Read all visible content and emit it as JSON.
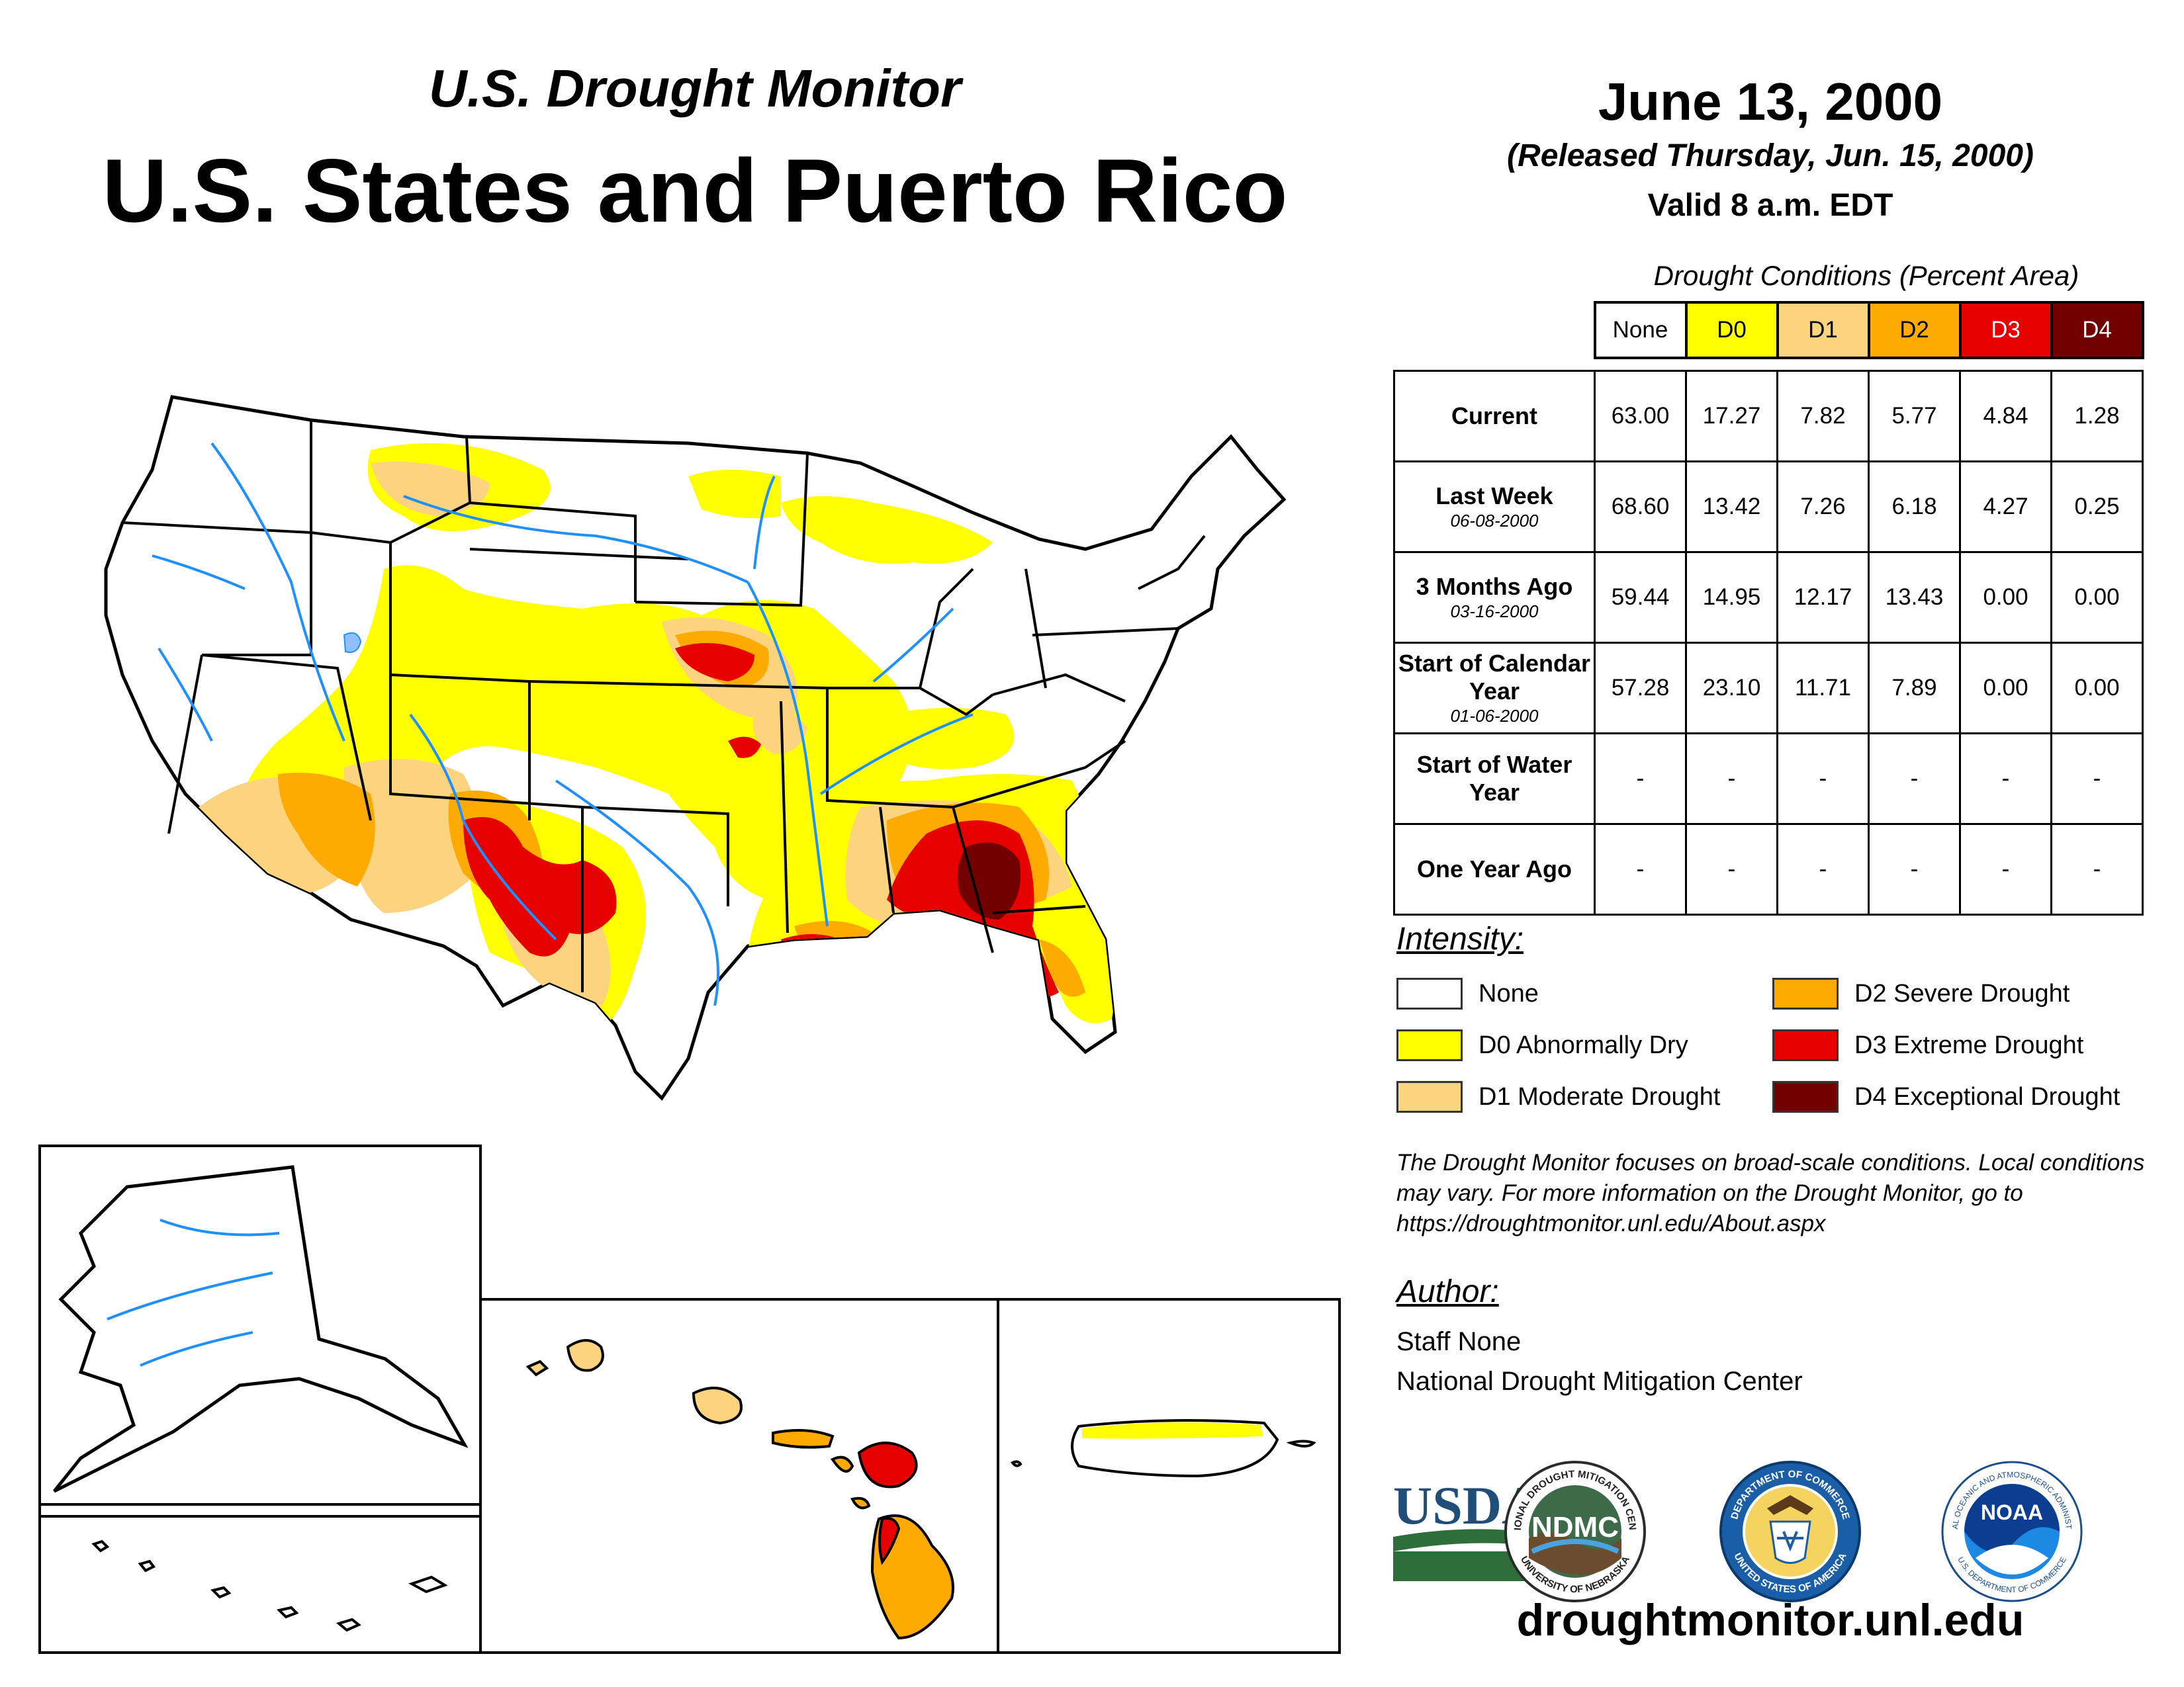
{
  "header": {
    "subtitle": "U.S. Drought Monitor",
    "title": "U.S. States and Puerto Rico",
    "date": "June 13, 2000",
    "released": "(Released Thursday, Jun. 15, 2000)",
    "valid": "Valid 8 a.m. EDT"
  },
  "conditions": {
    "title": "Drought Conditions (Percent Area)",
    "columns": [
      "None",
      "D0",
      "D1",
      "D2",
      "D3",
      "D4"
    ],
    "column_colors": [
      "#ffffff",
      "#ffff00",
      "#fcd37f",
      "#ffaa00",
      "#e60000",
      "#730000"
    ],
    "rows": [
      {
        "label": "Current",
        "date": "",
        "values": [
          "63.00",
          "17.27",
          "7.82",
          "5.77",
          "4.84",
          "1.28"
        ]
      },
      {
        "label": "Last Week",
        "date": "06-08-2000",
        "values": [
          "68.60",
          "13.42",
          "7.26",
          "6.18",
          "4.27",
          "0.25"
        ]
      },
      {
        "label": "3 Months Ago",
        "date": "03-16-2000",
        "values": [
          "59.44",
          "14.95",
          "12.17",
          "13.43",
          "0.00",
          "0.00"
        ]
      },
      {
        "label": "Start of Calendar Year",
        "date": "01-06-2000",
        "values": [
          "57.28",
          "23.10",
          "11.71",
          "7.89",
          "0.00",
          "0.00"
        ]
      },
      {
        "label": "Start of Water Year",
        "date": "",
        "values": [
          "-",
          "-",
          "-",
          "-",
          "-",
          "-"
        ]
      },
      {
        "label": "One Year Ago",
        "date": "",
        "values": [
          "-",
          "-",
          "-",
          "-",
          "-",
          "-"
        ]
      }
    ]
  },
  "intensity": {
    "heading": "Intensity:",
    "items": [
      {
        "label": "None",
        "color": "#ffffff"
      },
      {
        "label": "D0 Abnormally Dry",
        "color": "#ffff00"
      },
      {
        "label": "D1 Moderate Drought",
        "color": "#fcd37f"
      },
      {
        "label": "D2 Severe Drought",
        "color": "#ffaa00"
      },
      {
        "label": "D3 Extreme Drought",
        "color": "#e60000"
      },
      {
        "label": "D4 Exceptional Drought",
        "color": "#730000"
      }
    ]
  },
  "disclaimer": "The Drought Monitor focuses on broad-scale conditions. Local conditions may vary. For more information on the Drought Monitor, go to https://droughtmonitor.unl.edu/About.aspx",
  "author": {
    "heading": "Author:",
    "name": "Staff None",
    "org": "National Drought Mitigation Center"
  },
  "logos": {
    "usda": "USDA",
    "ndmc": "NDMC",
    "ndmc_ring": "NATIONAL DROUGHT MITIGATION CENTER",
    "ndmc_ring_bottom": "UNIVERSITY OF NEBRASKA",
    "doc_ring": "DEPARTMENT OF COMMERCE",
    "doc_ring_bottom": "UNITED STATES OF AMERICA",
    "noaa": "NOAA",
    "noaa_ring": "NATIONAL OCEANIC AND ATMOSPHERIC ADMINISTRATION",
    "noaa_ring_bottom": "U.S. DEPARTMENT OF COMMERCE"
  },
  "website": "droughtmonitor.unl.edu",
  "map_colors": {
    "none": "#ffffff",
    "d0": "#ffff00",
    "d1": "#fcd37f",
    "d2": "#ffaa00",
    "d3": "#e60000",
    "d4": "#730000",
    "water": "#1e90ff",
    "lake": "#8fbfff"
  }
}
